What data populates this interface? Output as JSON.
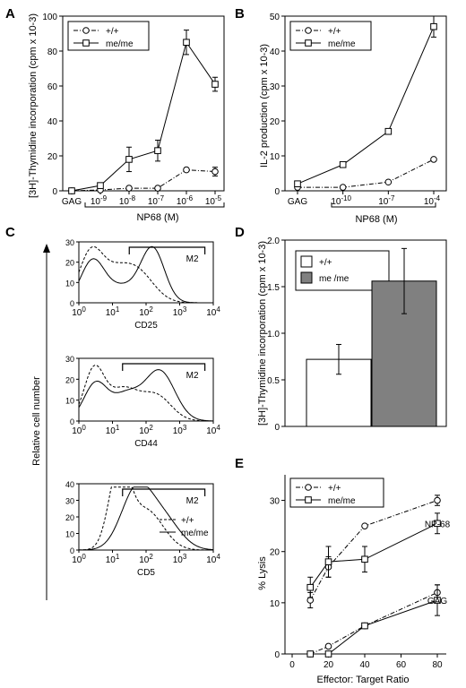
{
  "panels": {
    "A": "A",
    "B": "B",
    "C": "C",
    "D": "D",
    "E": "E"
  },
  "chart_data": [
    {
      "panel": "A",
      "type": "line",
      "categories": [
        "GAG",
        "10-9",
        "10-8",
        "10-7",
        "10-6",
        "10-5"
      ],
      "xgroup_label": "NP68 (M)",
      "ylabel": "[3H]-Thymidine incorporation (cpm x 10-3)",
      "ylim": [
        0,
        100
      ],
      "yticks": [
        "0",
        "20",
        "40",
        "60",
        "80",
        "100"
      ],
      "legend": [
        "+/+",
        "me/me"
      ],
      "series": [
        {
          "name": "+/+",
          "style": "dash-dot",
          "marker": "circle",
          "values": [
            0,
            0.5,
            1.5,
            1.5,
            12,
            11
          ],
          "errors": [
            0,
            0,
            0,
            0,
            1,
            2.5
          ]
        },
        {
          "name": "me/me",
          "style": "solid",
          "marker": "square",
          "values": [
            0,
            3,
            18,
            23,
            85,
            61
          ],
          "errors": [
            0,
            0,
            7,
            6,
            7,
            4
          ]
        }
      ]
    },
    {
      "panel": "B",
      "type": "line",
      "categories": [
        "GAG",
        "10-10",
        "10-7",
        "10-4"
      ],
      "xgroup_label": "NP68 (M)",
      "ylabel": "IL-2 production (cpm x 10-3)",
      "ylim": [
        0,
        50
      ],
      "yticks": [
        "0",
        "10",
        "20",
        "30",
        "40",
        "50"
      ],
      "legend": [
        "+/+",
        "me/me"
      ],
      "series": [
        {
          "name": "+/+",
          "style": "dash-dot",
          "marker": "circle",
          "values": [
            1,
            1,
            2.5,
            9
          ],
          "errors": [
            0,
            0,
            0,
            0
          ]
        },
        {
          "name": "me/me",
          "style": "solid",
          "marker": "square",
          "values": [
            2,
            7.5,
            17,
            47
          ],
          "errors": [
            0,
            0,
            0,
            3
          ]
        }
      ]
    },
    {
      "panel": "C",
      "type": "line",
      "ylabel": "Relative cell number",
      "legend": [
        "+/+",
        "me/me"
      ],
      "gate": "M2",
      "plots": [
        {
          "xlabel": "CD25",
          "yticks": [
            "0",
            "10",
            "20",
            "30"
          ],
          "xticks": [
            "10",
            "10",
            "10",
            "10",
            "10"
          ],
          "xexps": [
            "0",
            "1",
            "2",
            "3",
            "4"
          ]
        },
        {
          "xlabel": "CD44",
          "yticks": [
            "0",
            "10",
            "20",
            "30"
          ],
          "xticks": [
            "10",
            "10",
            "10",
            "10",
            "10"
          ],
          "xexps": [
            "0",
            "1",
            "2",
            "3",
            "4"
          ]
        },
        {
          "xlabel": "CD5",
          "yticks": [
            "0",
            "10",
            "20",
            "30",
            "40"
          ],
          "xticks": [
            "10",
            "10",
            "10",
            "10",
            "10"
          ],
          "xexps": [
            "0",
            "1",
            "2",
            "3",
            "4"
          ]
        }
      ]
    },
    {
      "panel": "D",
      "type": "bar",
      "categories": [
        "+/+",
        "me /me"
      ],
      "legend": [
        "+/+",
        "me /me"
      ],
      "colors": [
        "#ffffff",
        "#808080"
      ],
      "values": [
        0.72,
        1.56
      ],
      "errors": [
        0.16,
        0.35
      ],
      "ylabel": "[3H]-Thymidine incorporation (cpm x 10-3)",
      "ylim": [
        0,
        2.0
      ],
      "yticks": [
        "0",
        "0.5",
        "1.0",
        "1.5",
        "2.0"
      ]
    },
    {
      "panel": "E",
      "type": "line",
      "xlabel": "Effector: Target Ratio",
      "ylabel": "% Lysis",
      "xlim": [
        0,
        80
      ],
      "ylim": [
        0,
        35
      ],
      "xticks": [
        "0",
        "20",
        "40",
        "60",
        "80"
      ],
      "yticks": [
        "0",
        "10",
        "20",
        "30"
      ],
      "legend": [
        "+/+",
        "me/me"
      ],
      "annotations": [
        "NP-68",
        "GAG"
      ],
      "series": [
        {
          "name": "+/+",
          "group": "NP-68",
          "style": "dash-dot",
          "marker": "circle",
          "x": [
            10,
            20,
            40,
            80
          ],
          "values": [
            10.5,
            17,
            25,
            30
          ],
          "errors": [
            1.5,
            2,
            0,
            1
          ]
        },
        {
          "name": "me/me",
          "group": "NP-68",
          "style": "solid",
          "marker": "square",
          "x": [
            10,
            20,
            40,
            80
          ],
          "values": [
            13,
            18,
            18.5,
            25.5
          ],
          "errors": [
            2,
            3,
            2.5,
            2
          ]
        },
        {
          "name": "+/+",
          "group": "GAG",
          "style": "dash-dot",
          "marker": "circle",
          "x": [
            10,
            20,
            40,
            80
          ],
          "values": [
            0,
            1.5,
            5.5,
            12
          ],
          "errors": [
            0,
            0,
            0,
            1.5
          ]
        },
        {
          "name": "me/me",
          "group": "GAG",
          "style": "solid",
          "marker": "square",
          "x": [
            10,
            20,
            40,
            80
          ],
          "values": [
            0,
            0,
            5.5,
            10.5
          ],
          "errors": [
            0,
            0,
            0,
            3
          ]
        }
      ]
    }
  ]
}
